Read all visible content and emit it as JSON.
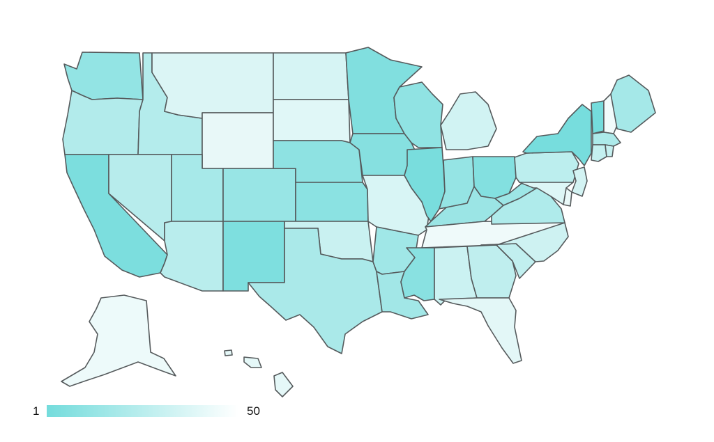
{
  "legend": {
    "min_label": "1",
    "max_label": "50",
    "color_low": "#74dcdc",
    "color_high": "#ffffff"
  },
  "colors": {
    "border": "#555a5c",
    "background": "#ffffff"
  },
  "states": [
    {
      "id": "WA",
      "rank": 13
    },
    {
      "id": "OR",
      "rank": 25
    },
    {
      "id": "CA",
      "rank": 4
    },
    {
      "id": "ID",
      "rank": 26
    },
    {
      "id": "NV",
      "rank": 27
    },
    {
      "id": "MT",
      "rank": 41
    },
    {
      "id": "WY",
      "rank": 46
    },
    {
      "id": "UT",
      "rank": 21
    },
    {
      "id": "AZ",
      "rank": 28
    },
    {
      "id": "CO",
      "rank": 15
    },
    {
      "id": "NM",
      "rank": 5
    },
    {
      "id": "ND",
      "rank": 39
    },
    {
      "id": "SD",
      "rank": 43
    },
    {
      "id": "NE",
      "rank": 11
    },
    {
      "id": "KS",
      "rank": 10
    },
    {
      "id": "OK",
      "rank": 34
    },
    {
      "id": "TX",
      "rank": 22
    },
    {
      "id": "MN",
      "rank": 6
    },
    {
      "id": "IA",
      "rank": 8
    },
    {
      "id": "MO",
      "rank": 40
    },
    {
      "id": "AR",
      "rank": 18
    },
    {
      "id": "LA",
      "rank": 19
    },
    {
      "id": "WI",
      "rank": 12
    },
    {
      "id": "IL",
      "rank": 3
    },
    {
      "id": "MI",
      "rank": 37
    },
    {
      "id": "IN",
      "rank": 14
    },
    {
      "id": "OH",
      "rank": 7
    },
    {
      "id": "KY",
      "rank": 16
    },
    {
      "id": "TN",
      "rank": 49
    },
    {
      "id": "MS",
      "rank": 9
    },
    {
      "id": "AL",
      "rank": 35
    },
    {
      "id": "GA",
      "rank": 30
    },
    {
      "id": "FL",
      "rank": 44
    },
    {
      "id": "SC",
      "rank": 31
    },
    {
      "id": "NC",
      "rank": 36
    },
    {
      "id": "VA",
      "rank": 24
    },
    {
      "id": "WV",
      "rank": 17
    },
    {
      "id": "PA",
      "rank": 29
    },
    {
      "id": "NY",
      "rank": 2
    },
    {
      "id": "VT",
      "rank": 1
    },
    {
      "id": "NH",
      "rank": 50
    },
    {
      "id": "ME",
      "rank": 20
    },
    {
      "id": "MA",
      "rank": 23
    },
    {
      "id": "CT",
      "rank": 32
    },
    {
      "id": "RI",
      "rank": 33
    },
    {
      "id": "NJ",
      "rank": 38
    },
    {
      "id": "DE",
      "rank": 47
    },
    {
      "id": "MD",
      "rank": 42
    },
    {
      "id": "AK",
      "rank": 48
    },
    {
      "id": "HI",
      "rank": 45
    }
  ]
}
